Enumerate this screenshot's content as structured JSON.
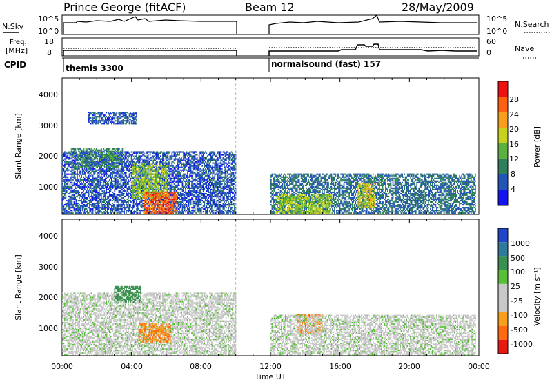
{
  "header": {
    "station": "Prince George (fitACF)",
    "beam": "Beam 12",
    "date": "28/May/2009"
  },
  "summary_panels": {
    "nsky_label": "N.Sky",
    "nsky_ticks": [
      "10^5",
      "10^0"
    ],
    "nsearch_label": "N.Search",
    "nsearch_ticks": [
      "10^5",
      "10^0"
    ],
    "freq_label_line1": "Freq.",
    "freq_label_line2": "[MHz]",
    "freq_ticks": [
      "18",
      "8"
    ],
    "nave_label": "Nave",
    "nave_ticks": [
      "60",
      "0"
    ],
    "cpid_label": "CPID",
    "cpid_segments": [
      {
        "name": "themis 3300",
        "start_hour": 0,
        "end_hour": 10
      },
      {
        "name": "normalsound (fast) 157",
        "start_hour": 12,
        "end_hour": 24
      }
    ]
  },
  "x_axis": {
    "label": "Time UT",
    "ticks": [
      "00:00",
      "04:00",
      "08:00",
      "12:00",
      "16:00",
      "20:00",
      "00:00"
    ]
  },
  "power_panel": {
    "ylabel": "Slant Range [km]",
    "yticks": [
      "1000",
      "2000",
      "3000",
      "4000"
    ],
    "colorbar_label": "Power [dB]",
    "colorbar_ticks": [
      "4",
      "8",
      "12",
      "16",
      "20",
      "24",
      "28"
    ],
    "colors": [
      "#1414f0",
      "#2255b8",
      "#2f7f5a",
      "#5ab040",
      "#c8d21e",
      "#f8a01c",
      "#ff6010",
      "#f01010"
    ]
  },
  "velocity_panel": {
    "ylabel": "Slant Range [km]",
    "yticks": [
      "1000",
      "2000",
      "3000",
      "4000"
    ],
    "colorbar_label": "Velocity [m s⁻¹]",
    "colorbar_ticks": [
      "1000",
      "500",
      "100",
      "25",
      "-25",
      "-100",
      "-500",
      "-1000"
    ],
    "colors": [
      "#2244c8",
      "#2f7a9a",
      "#3a9050",
      "#58c038",
      "#c8c8c8",
      "#c8c8c8",
      "#f8a01c",
      "#ff6a10",
      "#e81a10"
    ]
  },
  "chart_data": {
    "type": "heatmap",
    "title": "Prince George (fitACF)",
    "xlabel": "Time UT",
    "ylabel": "Slant Range [km]",
    "xlim": [
      0,
      24
    ],
    "ylim": [
      180,
      4600
    ],
    "data_gap_hours": [
      10,
      12
    ],
    "power_regions_db": [
      {
        "t": [
          0,
          10
        ],
        "r": [
          200,
          2200
        ],
        "db": 6
      },
      {
        "t": [
          0.5,
          3.5
        ],
        "r": [
          1700,
          2300
        ],
        "db": 10
      },
      {
        "t": [
          1.5,
          4.3
        ],
        "r": [
          3100,
          3500
        ],
        "db": 6
      },
      {
        "t": [
          4.0,
          6.0
        ],
        "r": [
          700,
          1800
        ],
        "db": 16
      },
      {
        "t": [
          4.7,
          6.6
        ],
        "r": [
          200,
          900
        ],
        "db": 26
      },
      {
        "t": [
          12.0,
          23.8
        ],
        "r": [
          200,
          1500
        ],
        "db": 8
      },
      {
        "t": [
          12.3,
          15.5
        ],
        "r": [
          200,
          800
        ],
        "db": 16
      },
      {
        "t": [
          17.0,
          18.0
        ],
        "r": [
          400,
          1200
        ],
        "db": 18
      }
    ],
    "velocity_regions_ms": [
      {
        "t": [
          0,
          10
        ],
        "r": [
          200,
          2200
        ],
        "v": 0
      },
      {
        "t": [
          3.0,
          4.5
        ],
        "r": [
          1900,
          2400
        ],
        "v": 100
      },
      {
        "t": [
          4.4,
          6.2
        ],
        "r": [
          600,
          1200
        ],
        "v": -300
      },
      {
        "t": [
          13.5,
          15.0
        ],
        "r": [
          900,
          1500
        ],
        "v": -300
      },
      {
        "t": [
          12.0,
          23.8
        ],
        "r": [
          200,
          1500
        ],
        "v": 0
      }
    ]
  }
}
